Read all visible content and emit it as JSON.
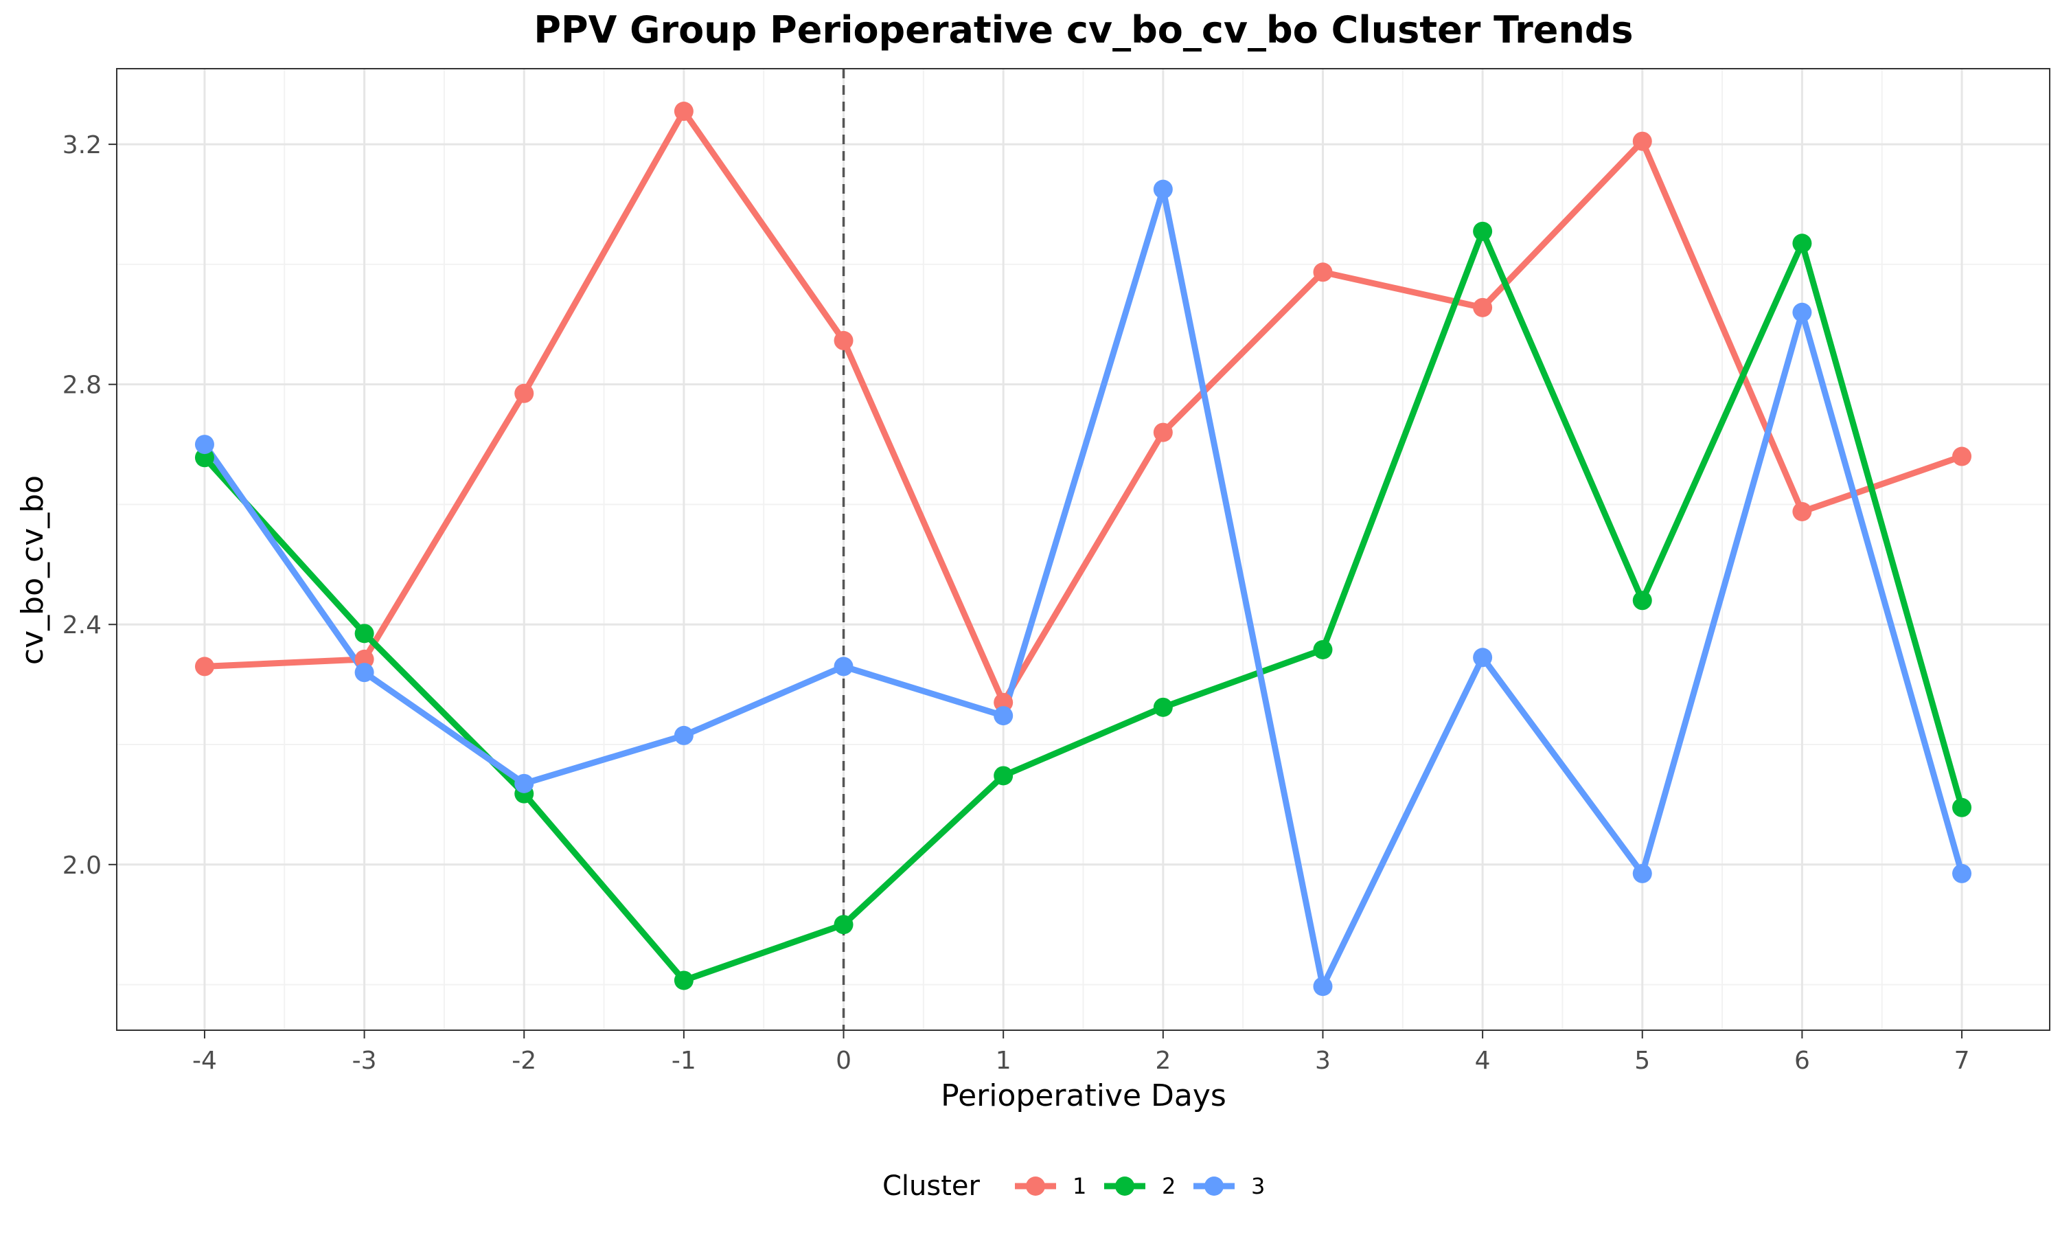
{
  "chart_data": {
    "type": "line",
    "title": "PPV Group Perioperative cv_bo_cv_bo Cluster Trends",
    "xlabel": "Perioperative Days",
    "ylabel": "cv_bo_cv_bo",
    "x": [
      -4,
      -3,
      -2,
      -1,
      0,
      1,
      2,
      3,
      4,
      5,
      6,
      7
    ],
    "x_tick_labels": [
      "-4",
      "-3",
      "-2",
      "-1",
      "0",
      "1",
      "2",
      "3",
      "4",
      "5",
      "6",
      "7"
    ],
    "y_ticks": [
      2.0,
      2.4,
      2.8,
      3.2
    ],
    "y_tick_labels": [
      "2.0",
      "2.4",
      "2.8",
      "3.2"
    ],
    "xlim": [
      -4.55,
      7.55
    ],
    "ylim": [
      1.724,
      3.326
    ],
    "grid": true,
    "vertical_reference_line": {
      "x": 0,
      "style": "dashed"
    },
    "legend": {
      "title": "Cluster",
      "position": "bottom"
    },
    "series": [
      {
        "name": "1",
        "color": "#F8766D",
        "values": [
          2.33,
          2.342,
          2.785,
          3.255,
          2.873,
          2.27,
          2.72,
          2.987,
          2.928,
          3.205,
          2.588,
          2.68
        ]
      },
      {
        "name": "2",
        "color": "#00BA38",
        "values": [
          2.678,
          2.385,
          2.118,
          1.807,
          1.9,
          2.148,
          2.262,
          2.358,
          3.055,
          2.44,
          3.035,
          2.095
        ]
      },
      {
        "name": "3",
        "color": "#619CFF",
        "values": [
          2.7,
          2.32,
          2.135,
          2.215,
          2.33,
          2.248,
          3.125,
          1.797,
          2.345,
          1.985,
          2.92,
          1.985
        ]
      }
    ]
  }
}
